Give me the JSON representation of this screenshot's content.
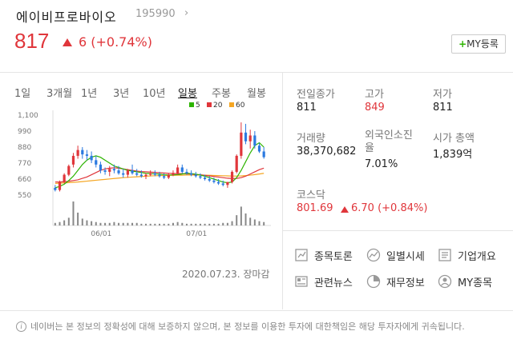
{
  "header": {
    "name": "에이비프로바이오",
    "code": "195990",
    "price": "817",
    "change": "6 (+0.74%)",
    "my_button": "MY등록"
  },
  "tabs": [
    "1일",
    "3개월",
    "1년",
    "3년",
    "10년",
    "일봉",
    "주봉",
    "월봉"
  ],
  "active_tab": "일봉",
  "chart_data": {
    "type": "candlestick",
    "y_ticks": [
      "1,100",
      "990",
      "880",
      "770",
      "660",
      "550"
    ],
    "ylim": [
      550,
      1100
    ],
    "x_ticks": [
      "06/01",
      "07/01"
    ],
    "legend": [
      {
        "name": "5",
        "color": "#2db400"
      },
      {
        "name": "20",
        "color": "#e0363b"
      },
      {
        "name": "60",
        "color": "#f5a623"
      }
    ],
    "candles": [
      [
        600,
        620,
        575,
        585
      ],
      [
        585,
        650,
        575,
        640
      ],
      [
        640,
        700,
        630,
        690
      ],
      [
        690,
        760,
        680,
        750
      ],
      [
        760,
        840,
        740,
        820
      ],
      [
        820,
        890,
        800,
        860
      ],
      [
        860,
        880,
        800,
        830
      ],
      [
        830,
        860,
        790,
        820
      ],
      [
        820,
        850,
        770,
        790
      ],
      [
        790,
        820,
        740,
        760
      ],
      [
        760,
        780,
        700,
        720
      ],
      [
        720,
        740,
        690,
        710
      ],
      [
        710,
        750,
        680,
        730
      ],
      [
        730,
        760,
        700,
        720
      ],
      [
        720,
        750,
        690,
        700
      ],
      [
        700,
        730,
        670,
        690
      ],
      [
        690,
        730,
        670,
        720
      ],
      [
        720,
        760,
        690,
        700
      ],
      [
        700,
        730,
        680,
        690
      ],
      [
        690,
        720,
        670,
        680
      ],
      [
        680,
        700,
        660,
        690
      ],
      [
        690,
        720,
        680,
        700
      ],
      [
        700,
        720,
        680,
        690
      ],
      [
        690,
        710,
        670,
        680
      ],
      [
        680,
        700,
        660,
        670
      ],
      [
        670,
        700,
        660,
        690
      ],
      [
        690,
        720,
        680,
        700
      ],
      [
        700,
        760,
        690,
        740
      ],
      [
        740,
        760,
        700,
        710
      ],
      [
        710,
        730,
        690,
        700
      ],
      [
        700,
        720,
        680,
        690
      ],
      [
        690,
        710,
        670,
        680
      ],
      [
        680,
        700,
        660,
        670
      ],
      [
        670,
        690,
        650,
        660
      ],
      [
        660,
        680,
        640,
        650
      ],
      [
        650,
        670,
        630,
        640
      ],
      [
        640,
        660,
        620,
        630
      ],
      [
        630,
        650,
        610,
        620
      ],
      [
        620,
        640,
        600,
        640
      ],
      [
        640,
        720,
        630,
        710
      ],
      [
        710,
        830,
        700,
        820
      ],
      [
        820,
        1050,
        800,
        980
      ],
      [
        980,
        1040,
        900,
        920
      ],
      [
        920,
        1000,
        870,
        960
      ],
      [
        960,
        990,
        870,
        890
      ],
      [
        890,
        910,
        840,
        850
      ],
      [
        850,
        880,
        800,
        811
      ]
    ],
    "ma5": [
      600,
      610,
      625,
      650,
      680,
      720,
      760,
      790,
      810,
      820,
      810,
      790,
      770,
      750,
      740,
      730,
      720,
      715,
      710,
      705,
      700,
      698,
      696,
      694,
      690,
      688,
      689,
      691,
      695,
      700,
      698,
      694,
      688,
      680,
      670,
      660,
      650,
      640,
      635,
      640,
      670,
      720,
      780,
      840,
      890,
      910,
      880
    ],
    "ma20": [
      640,
      640,
      642,
      645,
      650,
      655,
      665,
      675,
      690,
      705,
      720,
      730,
      735,
      738,
      735,
      730,
      725,
      720,
      715,
      712,
      710,
      708,
      706,
      704,
      702,
      700,
      699,
      698,
      697,
      696,
      694,
      692,
      690,
      686,
      682,
      678,
      674,
      670,
      666,
      664,
      665,
      670,
      680,
      695,
      710,
      725,
      735
    ],
    "ma60": [
      630,
      632,
      634,
      636,
      638,
      640,
      643,
      646,
      649,
      652,
      655,
      658,
      661,
      664,
      667,
      670,
      672,
      674,
      676,
      678,
      680,
      682,
      683,
      684,
      685,
      686,
      686,
      687,
      687,
      688,
      688,
      688,
      688,
      687,
      686,
      685,
      684,
      683,
      682,
      681,
      681,
      682,
      684,
      687,
      691,
      695,
      700
    ],
    "volume": [
      3,
      4,
      6,
      9,
      28,
      15,
      8,
      6,
      5,
      4,
      3,
      3,
      3,
      4,
      3,
      3,
      3,
      3,
      3,
      2,
      2,
      2,
      2,
      2,
      2,
      2,
      3,
      4,
      3,
      2,
      2,
      2,
      2,
      2,
      2,
      2,
      2,
      3,
      3,
      5,
      12,
      22,
      14,
      9,
      7,
      5,
      4
    ]
  },
  "chart_date": "2020.07.23. 장마감",
  "stats": [
    {
      "label": "전일종가",
      "value": "811",
      "red": false
    },
    {
      "label": "고가",
      "value": "849",
      "red": true
    },
    {
      "label": "저가",
      "value": "811",
      "red": false
    },
    {
      "label": "거래량",
      "value": "38,370,682",
      "red": false
    },
    {
      "label": "외국인소진율",
      "value": "7.01%",
      "red": false
    },
    {
      "label": "시가 총액",
      "value": "1,839억",
      "red": false
    }
  ],
  "kosdaq": {
    "label": "코스닥",
    "value": "801.69",
    "change": "6.70 (+0.84%)"
  },
  "links": [
    {
      "label": "종목토론",
      "icon": "chart-doc-icon"
    },
    {
      "label": "일별시세",
      "icon": "trend-icon"
    },
    {
      "label": "기업개요",
      "icon": "list-icon"
    },
    {
      "label": "관련뉴스",
      "icon": "news-icon"
    },
    {
      "label": "재무정보",
      "icon": "pie-icon"
    },
    {
      "label": "MY종목",
      "icon": "user-icon"
    }
  ],
  "disclaimer": "네이버는 본 정보의 정확성에 대해 보증하지 않으며, 본 정보를 이용한 투자에 대한책임은 해당 투자자에게 귀속됩니다."
}
